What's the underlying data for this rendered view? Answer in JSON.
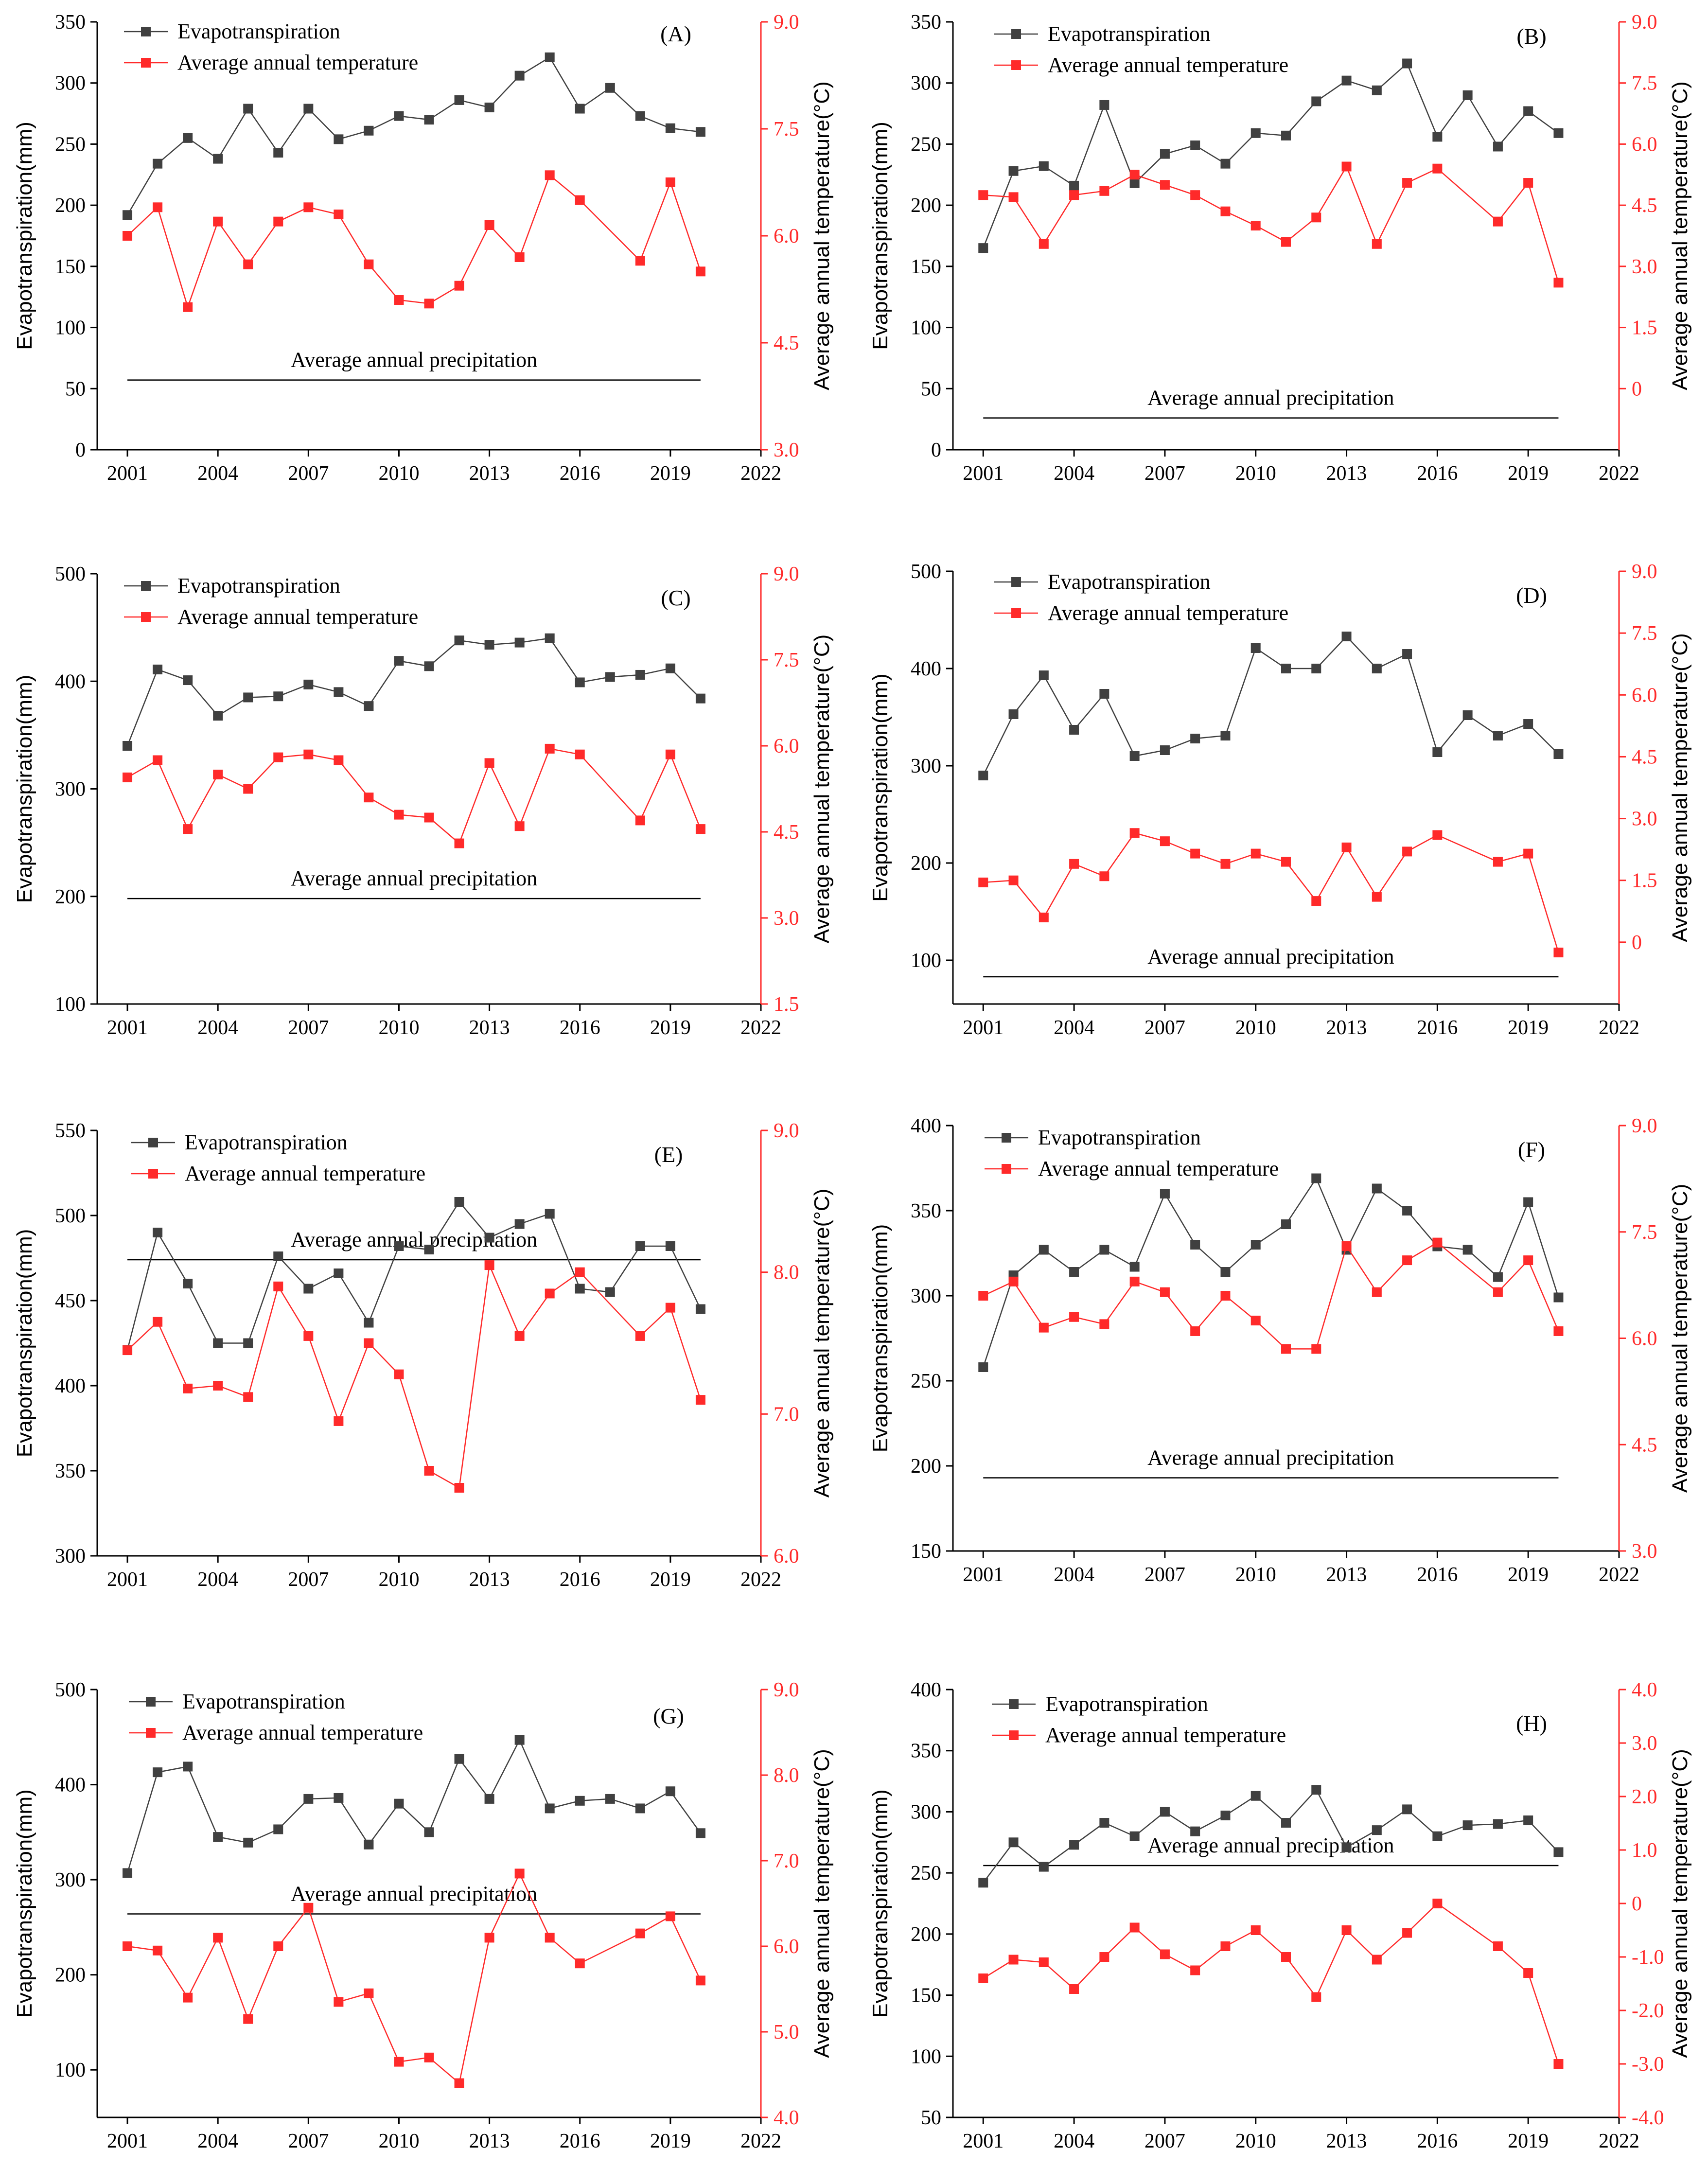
{
  "colors": {
    "et": "#404040",
    "temp": "#ff2a2a",
    "axis": "#000000",
    "temp_axis": "#ff2a2a"
  },
  "chart_data": [
    {
      "type": "line",
      "panel": "(A)",
      "x": [
        2001,
        2002,
        2003,
        2004,
        2005,
        2006,
        2007,
        2008,
        2009,
        2010,
        2011,
        2012,
        2013,
        2014,
        2015,
        2016,
        2017,
        2018,
        2019,
        2020
      ],
      "xlim": [
        2000,
        2022
      ],
      "xticks": [
        2001,
        2004,
        2007,
        2010,
        2013,
        2016,
        2019,
        2022
      ],
      "ylabel": "Evapotranspiration(mm)",
      "ylim": [
        0,
        350
      ],
      "yticks": [
        0,
        50,
        100,
        150,
        200,
        250,
        300,
        350
      ],
      "y2label": "Average annual temperature(°C)",
      "y2lim": [
        3.0,
        9.0
      ],
      "y2ticks": [
        "3.0",
        "4.5",
        "6.0",
        "7.5",
        "9.0"
      ],
      "series": [
        {
          "name": "Evapotranspiration",
          "axis": "left",
          "values": [
            192,
            234,
            255,
            238,
            279,
            243,
            279,
            254,
            261,
            273,
            270,
            286,
            280,
            306,
            321,
            279,
            296,
            273,
            263,
            260
          ]
        },
        {
          "name": "Average annual temperature",
          "axis": "right",
          "x": [
            2001,
            2002,
            2003,
            2004,
            2005,
            2006,
            2007,
            2008,
            2009,
            2010,
            2011,
            2012,
            2013,
            2014,
            2015,
            2016,
            2018,
            2019,
            2020
          ],
          "values": [
            6.0,
            6.4,
            5.0,
            6.2,
            5.6,
            6.2,
            6.4,
            6.3,
            5.6,
            5.1,
            5.05,
            5.3,
            6.15,
            5.7,
            6.85,
            6.5,
            5.65,
            6.75,
            5.5
          ]
        }
      ],
      "precipitation": {
        "label": "Average annual precipitation",
        "value": 57,
        "x_range": [
          2001,
          2020
        ]
      }
    },
    {
      "type": "line",
      "panel": "(B)",
      "x": [
        2001,
        2002,
        2003,
        2004,
        2005,
        2006,
        2007,
        2008,
        2009,
        2010,
        2011,
        2012,
        2013,
        2014,
        2015,
        2016,
        2017,
        2018,
        2019,
        2020
      ],
      "xlim": [
        2000,
        2022
      ],
      "xticks": [
        2001,
        2004,
        2007,
        2010,
        2013,
        2016,
        2019,
        2022
      ],
      "ylabel": "Evapotranspiration(mm)",
      "ylim": [
        0,
        350
      ],
      "yticks": [
        0,
        50,
        100,
        150,
        200,
        250,
        300,
        350
      ],
      "y2label": "Average annual temperature(°C)",
      "y2lim": [
        -1.5,
        9.0
      ],
      "y2ticks": [
        "0",
        "1.5",
        "3.0",
        "4.5",
        "6.0",
        "7.5",
        "9.0"
      ],
      "series": [
        {
          "name": "Evapotranspiration",
          "axis": "left",
          "values": [
            165,
            228,
            232,
            216,
            282,
            218,
            242,
            249,
            234,
            259,
            257,
            285,
            302,
            294,
            316,
            256,
            290,
            248,
            277,
            259
          ]
        },
        {
          "name": "Average annual temperature",
          "axis": "right",
          "x": [
            2001,
            2002,
            2003,
            2004,
            2005,
            2006,
            2007,
            2008,
            2009,
            2010,
            2011,
            2012,
            2013,
            2014,
            2015,
            2016,
            2018,
            2019,
            2020
          ],
          "values": [
            4.75,
            4.7,
            3.55,
            4.75,
            4.85,
            5.25,
            5.0,
            4.75,
            4.35,
            4.0,
            3.6,
            4.2,
            5.45,
            3.55,
            5.05,
            5.4,
            4.1,
            5.05,
            2.6
          ]
        }
      ],
      "precipitation": {
        "label": "Average annual precipitation",
        "value": 26,
        "x_range": [
          2001,
          2020
        ]
      }
    },
    {
      "type": "line",
      "panel": "(C)",
      "x": [
        2001,
        2002,
        2003,
        2004,
        2005,
        2006,
        2007,
        2008,
        2009,
        2010,
        2011,
        2012,
        2013,
        2014,
        2015,
        2016,
        2017,
        2018,
        2019,
        2020
      ],
      "xlim": [
        2000,
        2022
      ],
      "xticks": [
        2001,
        2004,
        2007,
        2010,
        2013,
        2016,
        2019,
        2022
      ],
      "ylabel": "Evapotranspiration(mm)",
      "ylim": [
        100,
        500
      ],
      "yticks": [
        100,
        200,
        300,
        400,
        500
      ],
      "y2label": "Average annual temperature(°C)",
      "y2lim": [
        1.5,
        9.0
      ],
      "y2ticks": [
        "1.5",
        "3.0",
        "4.5",
        "6.0",
        "7.5",
        "9.0"
      ],
      "series": [
        {
          "name": "Evapotranspiration",
          "axis": "left",
          "values": [
            340,
            411,
            401,
            368,
            385,
            386,
            397,
            390,
            377,
            419,
            414,
            438,
            434,
            436,
            440,
            399,
            404,
            406,
            412,
            384
          ]
        },
        {
          "name": "Average annual temperature",
          "axis": "right",
          "x": [
            2001,
            2002,
            2003,
            2004,
            2005,
            2006,
            2007,
            2008,
            2009,
            2010,
            2011,
            2012,
            2013,
            2014,
            2015,
            2016,
            2018,
            2019,
            2020
          ],
          "values": [
            5.45,
            5.75,
            4.55,
            5.5,
            5.25,
            5.8,
            5.85,
            5.75,
            5.1,
            4.8,
            4.75,
            4.3,
            5.7,
            4.6,
            5.95,
            5.85,
            4.7,
            5.85,
            4.55
          ]
        }
      ],
      "precipitation": {
        "label": "Average annual precipitation",
        "value": 198,
        "x_range": [
          2001,
          2020
        ]
      }
    },
    {
      "type": "line",
      "panel": "(D)",
      "x": [
        2001,
        2002,
        2003,
        2004,
        2005,
        2006,
        2007,
        2008,
        2009,
        2010,
        2011,
        2012,
        2013,
        2014,
        2015,
        2016,
        2017,
        2018,
        2019,
        2020
      ],
      "xlim": [
        2000,
        2022
      ],
      "xticks": [
        2001,
        2004,
        2007,
        2010,
        2013,
        2016,
        2019,
        2022
      ],
      "ylabel": "Evapotranspiration(mm)",
      "ylim": [
        55,
        500
      ],
      "yticks": [
        100,
        200,
        300,
        400,
        500
      ],
      "y2label": "Average annual temperature(°C)",
      "y2lim": [
        -1.5,
        9.0
      ],
      "y2ticks": [
        "0",
        "1.5",
        "3.0",
        "4.5",
        "6.0",
        "7.5",
        "9.0"
      ],
      "series": [
        {
          "name": "Evapotranspiration",
          "axis": "left",
          "values": [
            290,
            353,
            393,
            337,
            374,
            310,
            316,
            328,
            331,
            421,
            400,
            400,
            433,
            400,
            415,
            314,
            352,
            331,
            343,
            312
          ]
        },
        {
          "name": "Average annual temperature",
          "axis": "right",
          "x": [
            2001,
            2002,
            2003,
            2004,
            2005,
            2006,
            2007,
            2008,
            2009,
            2010,
            2011,
            2012,
            2013,
            2014,
            2015,
            2016,
            2018,
            2019,
            2020
          ],
          "values": [
            1.45,
            1.5,
            0.6,
            1.9,
            1.6,
            2.65,
            2.45,
            2.15,
            1.9,
            2.15,
            1.95,
            1.0,
            2.3,
            1.1,
            2.2,
            2.6,
            1.95,
            2.15,
            -0.25
          ]
        }
      ],
      "precipitation": {
        "label": "Average annual precipitation",
        "value": 83,
        "x_range": [
          2001,
          2020
        ]
      }
    },
    {
      "type": "line",
      "panel": "(E)",
      "x": [
        2001,
        2002,
        2003,
        2004,
        2005,
        2006,
        2007,
        2008,
        2009,
        2010,
        2011,
        2012,
        2013,
        2014,
        2015,
        2016,
        2017,
        2018,
        2019,
        2020
      ],
      "xlim": [
        2000,
        2022
      ],
      "xticks": [
        2001,
        2004,
        2007,
        2010,
        2013,
        2016,
        2019,
        2022
      ],
      "ylabel": "Evapotranspiration(mm)",
      "ylim": [
        300,
        550
      ],
      "yticks": [
        300,
        350,
        400,
        450,
        500,
        550
      ],
      "y2label": "Average annual temperature(°C)",
      "y2lim": [
        6.0,
        9.0
      ],
      "y2ticks": [
        "6.0",
        "7.0",
        "8.0",
        "9.0"
      ],
      "series": [
        {
          "name": "Evapotranspiration",
          "axis": "left",
          "values": [
            421,
            490,
            460,
            425,
            425,
            476,
            457,
            466,
            437,
            482,
            480,
            508,
            487,
            495,
            501,
            457,
            455,
            482,
            482,
            445
          ]
        },
        {
          "name": "Average annual temperature",
          "axis": "right",
          "x": [
            2001,
            2002,
            2003,
            2004,
            2005,
            2006,
            2007,
            2008,
            2009,
            2010,
            2011,
            2012,
            2013,
            2014,
            2015,
            2016,
            2018,
            2019,
            2020
          ],
          "values": [
            7.45,
            7.65,
            7.18,
            7.2,
            7.12,
            7.9,
            7.55,
            6.95,
            7.5,
            7.28,
            6.6,
            6.48,
            8.05,
            7.55,
            7.85,
            8.0,
            7.55,
            7.75,
            7.1
          ]
        }
      ],
      "precipitation": {
        "label": "Average annual precipitation",
        "value": 474,
        "x_range": [
          2001,
          2020
        ]
      }
    },
    {
      "type": "line",
      "panel": "(F)",
      "x": [
        2001,
        2002,
        2003,
        2004,
        2005,
        2006,
        2007,
        2008,
        2009,
        2010,
        2011,
        2012,
        2013,
        2014,
        2015,
        2016,
        2017,
        2018,
        2019,
        2020
      ],
      "xlim": [
        2000,
        2022
      ],
      "xticks": [
        2001,
        2004,
        2007,
        2010,
        2013,
        2016,
        2019,
        2022
      ],
      "ylabel": "Evapotranspiration(mm)",
      "ylim": [
        150,
        400
      ],
      "yticks": [
        150,
        200,
        250,
        300,
        350,
        400
      ],
      "y2label": "Average annual temperature(°C)",
      "y2lim": [
        3.0,
        9.0
      ],
      "y2ticks": [
        "3.0",
        "4.5",
        "6.0",
        "7.5",
        "9.0"
      ],
      "series": [
        {
          "name": "Evapotranspiration",
          "axis": "left",
          "values": [
            258,
            312,
            327,
            314,
            327,
            317,
            360,
            330,
            314,
            330,
            342,
            369,
            327,
            363,
            350,
            329,
            327,
            311,
            355,
            299
          ]
        },
        {
          "name": "Average annual temperature",
          "axis": "right",
          "x": [
            2001,
            2002,
            2003,
            2004,
            2005,
            2006,
            2007,
            2008,
            2009,
            2010,
            2011,
            2012,
            2013,
            2014,
            2015,
            2016,
            2018,
            2019,
            2020
          ],
          "values": [
            6.6,
            6.8,
            6.15,
            6.3,
            6.2,
            6.8,
            6.65,
            6.1,
            6.6,
            6.25,
            5.85,
            5.85,
            7.3,
            6.65,
            7.1,
            7.35,
            6.65,
            7.1,
            6.1
          ]
        }
      ],
      "precipitation": {
        "label": "Average annual precipitation",
        "value": 193,
        "x_range": [
          2001,
          2020
        ]
      }
    },
    {
      "type": "line",
      "panel": "(G)",
      "x": [
        2001,
        2002,
        2003,
        2004,
        2005,
        2006,
        2007,
        2008,
        2009,
        2010,
        2011,
        2012,
        2013,
        2014,
        2015,
        2016,
        2017,
        2018,
        2019,
        2020
      ],
      "xlim": [
        2000,
        2022
      ],
      "xticks": [
        2001,
        2004,
        2007,
        2010,
        2013,
        2016,
        2019,
        2022
      ],
      "ylabel": "Evapotranspiration(mm)",
      "ylim": [
        50,
        500
      ],
      "yticks": [
        100,
        200,
        300,
        400,
        500
      ],
      "y2label": "Average annual temperature(°C)",
      "y2lim": [
        4.0,
        9.0
      ],
      "y2ticks": [
        "4.0",
        "5.0",
        "6.0",
        "7.0",
        "8.0",
        "9.0"
      ],
      "series": [
        {
          "name": "Evapotranspiration",
          "axis": "left",
          "values": [
            307,
            413,
            419,
            345,
            339,
            353,
            385,
            386,
            337,
            380,
            350,
            427,
            385,
            447,
            375,
            383,
            385,
            375,
            393,
            349
          ]
        },
        {
          "name": "Average annual temperature",
          "axis": "right",
          "x": [
            2001,
            2002,
            2003,
            2004,
            2005,
            2006,
            2007,
            2008,
            2009,
            2010,
            2011,
            2012,
            2013,
            2014,
            2015,
            2016,
            2018,
            2019,
            2020
          ],
          "values": [
            6.0,
            5.95,
            5.4,
            6.1,
            5.15,
            6.0,
            6.45,
            5.35,
            5.45,
            4.65,
            4.7,
            4.4,
            6.1,
            6.85,
            6.1,
            5.8,
            6.15,
            6.35,
            5.6
          ]
        }
      ],
      "precipitation": {
        "label": "Average annual precipitation",
        "value": 264,
        "x_range": [
          2001,
          2020
        ]
      }
    },
    {
      "type": "line",
      "panel": "(H)",
      "x": [
        2001,
        2002,
        2003,
        2004,
        2005,
        2006,
        2007,
        2008,
        2009,
        2010,
        2011,
        2012,
        2013,
        2014,
        2015,
        2016,
        2017,
        2018,
        2019,
        2020
      ],
      "xlim": [
        2000,
        2022
      ],
      "xticks": [
        2001,
        2004,
        2007,
        2010,
        2013,
        2016,
        2019,
        2022
      ],
      "ylabel": "Evapotranspiration(mm)",
      "ylim": [
        50,
        400
      ],
      "yticks": [
        50,
        100,
        150,
        200,
        250,
        300,
        350,
        400
      ],
      "y2label": "Average annual temperature(°C)",
      "y2lim": [
        -4.0,
        4.0
      ],
      "y2ticks": [
        "-4.0",
        "-3.0",
        "-2.0",
        "-1.0",
        "0",
        "1.0",
        "2.0",
        "3.0",
        "4.0"
      ],
      "series": [
        {
          "name": "Evapotranspiration",
          "axis": "left",
          "values": [
            242,
            275,
            255,
            273,
            291,
            280,
            300,
            284,
            297,
            313,
            291,
            318,
            271,
            285,
            302,
            280,
            289,
            290,
            293,
            267
          ]
        },
        {
          "name": "Average annual temperature",
          "axis": "right",
          "x": [
            2001,
            2002,
            2003,
            2004,
            2005,
            2006,
            2007,
            2008,
            2009,
            2010,
            2011,
            2012,
            2013,
            2014,
            2015,
            2016,
            2018,
            2019,
            2020
          ],
          "values": [
            -1.4,
            -1.05,
            -1.1,
            -1.6,
            -1.0,
            -0.45,
            -0.95,
            -1.25,
            -0.8,
            -0.5,
            -1.0,
            -1.75,
            -0.5,
            -1.05,
            -0.55,
            0.0,
            -0.8,
            -1.3,
            -3.0
          ]
        }
      ],
      "precipitation": {
        "label": "Average annual precipitation",
        "value": 256,
        "x_range": [
          2001,
          2020
        ]
      }
    }
  ]
}
